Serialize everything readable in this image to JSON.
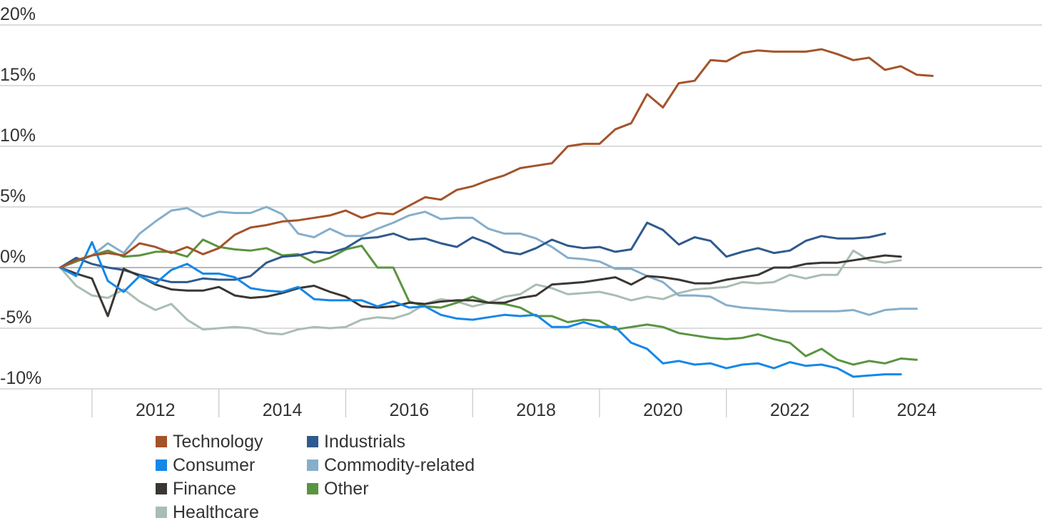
{
  "chart_data": {
    "type": "line",
    "title": "",
    "xlabel": "",
    "ylabel": "",
    "ylim": [
      -10,
      20
    ],
    "xlim": [
      2010.5,
      2025.8
    ],
    "grid": true,
    "y_ticks": [
      20,
      15,
      10,
      5,
      0,
      -5,
      -10
    ],
    "y_tick_labels": [
      "20%",
      "15%",
      "10%",
      "5%",
      "0%",
      "-5%",
      "-10%"
    ],
    "x_tick_labels": [
      "2012",
      "2014",
      "2016",
      "2018",
      "2020",
      "2022",
      "2024"
    ],
    "legend_position": "bottom-left",
    "x": [
      2011.0,
      2011.25,
      2011.5,
      2011.75,
      2012.0,
      2012.25,
      2012.5,
      2012.75,
      2013.0,
      2013.25,
      2013.5,
      2013.75,
      2014.0,
      2014.25,
      2014.5,
      2014.75,
      2015.0,
      2015.25,
      2015.5,
      2015.75,
      2016.0,
      2016.25,
      2016.5,
      2016.75,
      2017.0,
      2017.25,
      2017.5,
      2017.75,
      2018.0,
      2018.25,
      2018.5,
      2018.75,
      2019.0,
      2019.25,
      2019.5,
      2019.75,
      2020.0,
      2020.25,
      2020.5,
      2020.75,
      2021.0,
      2021.25,
      2021.5,
      2021.75,
      2022.0,
      2022.25,
      2022.5,
      2022.75,
      2023.0,
      2023.25,
      2023.5,
      2023.75,
      2024.0,
      2024.25,
      2024.5,
      2024.75,
      2025.0,
      2025.25,
      2025.5,
      2025.75
    ],
    "series": [
      {
        "name": "Technology",
        "color": "#A4532A",
        "values": [
          0,
          0.6,
          1.0,
          1.2,
          1.0,
          2.0,
          1.7,
          1.2,
          1.7,
          1.1,
          1.6,
          2.7,
          3.3,
          3.5,
          3.8,
          3.9,
          4.1,
          4.3,
          4.7,
          4.1,
          4.5,
          4.4,
          5.1,
          5.8,
          5.6,
          6.4,
          6.7,
          7.2,
          7.6,
          8.2,
          8.4,
          8.6,
          10.0,
          10.2,
          10.2,
          11.4,
          11.9,
          14.3,
          13.2,
          15.2,
          15.4,
          17.1,
          17.0,
          17.7,
          17.9,
          17.8,
          17.8,
          17.8,
          18.0,
          17.6,
          17.1,
          17.3,
          16.3,
          16.6,
          15.9,
          15.8,
          null,
          null,
          null,
          null
        ]
      },
      {
        "name": "Industrials",
        "color": "#2F5A8E",
        "values": [
          0,
          0.8,
          0.3,
          0,
          -0.2,
          -0.6,
          -0.9,
          -1.2,
          -1.2,
          -0.9,
          -1.0,
          -1.0,
          -0.7,
          0.4,
          0.9,
          1.0,
          1.3,
          1.2,
          1.6,
          2.4,
          2.5,
          2.8,
          2.3,
          2.4,
          2.0,
          1.7,
          2.5,
          2.0,
          1.3,
          1.1,
          1.6,
          2.3,
          1.8,
          1.6,
          1.7,
          1.3,
          1.5,
          3.7,
          3.1,
          1.9,
          2.5,
          2.2,
          0.9,
          1.3,
          1.6,
          1.2,
          1.4,
          2.2,
          2.6,
          2.4,
          2.4,
          2.5,
          2.8,
          null,
          null,
          null,
          null,
          null,
          null,
          null
        ]
      },
      {
        "name": "Consumer",
        "color": "#1487E8",
        "values": [
          0,
          -0.7,
          2.1,
          -1.1,
          -2.0,
          -0.7,
          -1.3,
          -0.2,
          0.3,
          -0.5,
          -0.5,
          -0.8,
          -1.7,
          -1.9,
          -2.0,
          -1.6,
          -2.6,
          -2.7,
          -2.7,
          -2.7,
          -3.2,
          -2.8,
          -3.3,
          -3.2,
          -3.9,
          -4.2,
          -4.3,
          -4.1,
          -3.9,
          -4.0,
          -3.9,
          -4.9,
          -4.9,
          -4.5,
          -4.9,
          -4.9,
          -6.2,
          -6.7,
          -7.9,
          -7.7,
          -8.0,
          -7.9,
          -8.3,
          -8.0,
          -7.9,
          -8.3,
          -7.8,
          -8.1,
          -8.0,
          -8.3,
          -9.0,
          -8.9,
          -8.8,
          -8.8,
          null,
          null,
          null,
          null,
          null,
          null
        ]
      },
      {
        "name": "Commodity-related",
        "color": "#86AECB",
        "values": [
          0,
          0.5,
          1.0,
          2.0,
          1.2,
          2.8,
          3.8,
          4.7,
          4.9,
          4.2,
          4.6,
          4.5,
          4.5,
          5.0,
          4.4,
          2.8,
          2.5,
          3.2,
          2.6,
          2.6,
          3.2,
          3.7,
          4.3,
          4.6,
          4.0,
          4.1,
          4.1,
          3.2,
          2.8,
          2.8,
          2.4,
          1.7,
          0.8,
          0.7,
          0.5,
          -0.1,
          -0.1,
          -0.7,
          -1.2,
          -2.3,
          -2.3,
          -2.4,
          -3.1,
          -3.3,
          -3.4,
          -3.5,
          -3.6,
          -3.6,
          -3.6,
          -3.6,
          -3.5,
          -3.9,
          -3.5,
          -3.4,
          -3.4,
          null,
          null,
          null,
          null,
          null
        ]
      },
      {
        "name": "Finance",
        "color": "#3A3733",
        "values": [
          0,
          -0.5,
          -0.9,
          -4.0,
          -0.1,
          -0.7,
          -1.4,
          -1.8,
          -1.9,
          -1.9,
          -1.6,
          -2.3,
          -2.5,
          -2.4,
          -2.1,
          -1.7,
          -1.5,
          -2.0,
          -2.4,
          -3.2,
          -3.3,
          -3.2,
          -2.9,
          -3.0,
          -2.8,
          -2.7,
          -2.7,
          -2.9,
          -2.9,
          -2.5,
          -2.3,
          -1.4,
          -1.3,
          -1.2,
          -1.0,
          -0.8,
          -1.4,
          -0.7,
          -0.8,
          -1.0,
          -1.3,
          -1.3,
          -1.0,
          -0.8,
          -0.6,
          0,
          0,
          0.3,
          0.4,
          0.4,
          0.6,
          0.8,
          1.0,
          0.9,
          null,
          null,
          null,
          null,
          null,
          null
        ]
      },
      {
        "name": "Other",
        "color": "#5A9440",
        "values": [
          0,
          0.5,
          1.0,
          1.4,
          0.9,
          1.0,
          1.3,
          1.3,
          0.9,
          2.3,
          1.7,
          1.5,
          1.4,
          1.6,
          1.0,
          1.1,
          0.4,
          0.8,
          1.5,
          1.8,
          0,
          0,
          -2.8,
          -3.2,
          -3.3,
          -2.9,
          -2.4,
          -2.9,
          -3.0,
          -3.3,
          -4.0,
          -4.0,
          -4.5,
          -4.3,
          -4.4,
          -5.1,
          -4.9,
          -4.7,
          -4.9,
          -5.4,
          -5.6,
          -5.8,
          -5.9,
          -5.8,
          -5.5,
          -5.9,
          -6.2,
          -7.3,
          -6.7,
          -7.6,
          -8.0,
          -7.7,
          -7.9,
          -7.5,
          -7.6,
          null,
          null,
          null,
          null,
          null
        ]
      },
      {
        "name": "Healthcare",
        "color": "#A9BDB3",
        "values": [
          0,
          -1.5,
          -2.3,
          -2.5,
          -1.8,
          -2.8,
          -3.5,
          -3.0,
          -4.3,
          -5.1,
          -5.0,
          -4.9,
          -5.0,
          -5.4,
          -5.5,
          -5.1,
          -4.9,
          -5.0,
          -4.9,
          -4.3,
          -4.1,
          -4.2,
          -3.8,
          -3.0,
          -2.6,
          -2.8,
          -3.2,
          -2.9,
          -2.4,
          -2.2,
          -1.4,
          -1.7,
          -2.2,
          -2.1,
          -2.0,
          -2.3,
          -2.7,
          -2.4,
          -2.6,
          -2.1,
          -1.8,
          -1.7,
          -1.6,
          -1.2,
          -1.3,
          -1.2,
          -0.6,
          -0.9,
          -0.6,
          -0.6,
          1.4,
          0.6,
          0.4,
          0.6,
          null,
          null,
          null,
          null,
          null,
          null
        ]
      }
    ]
  },
  "legend": [
    {
      "label": "Technology",
      "color": "#A4532A"
    },
    {
      "label": "Industrials",
      "color": "#2F5A8E"
    },
    {
      "label": "Consumer",
      "color": "#1487E8"
    },
    {
      "label": "Commodity-related",
      "color": "#86AECB"
    },
    {
      "label": "Finance",
      "color": "#3A3733"
    },
    {
      "label": "Other",
      "color": "#5A9440"
    },
    {
      "label": "Healthcare",
      "color": "#A9BDB3"
    }
  ]
}
